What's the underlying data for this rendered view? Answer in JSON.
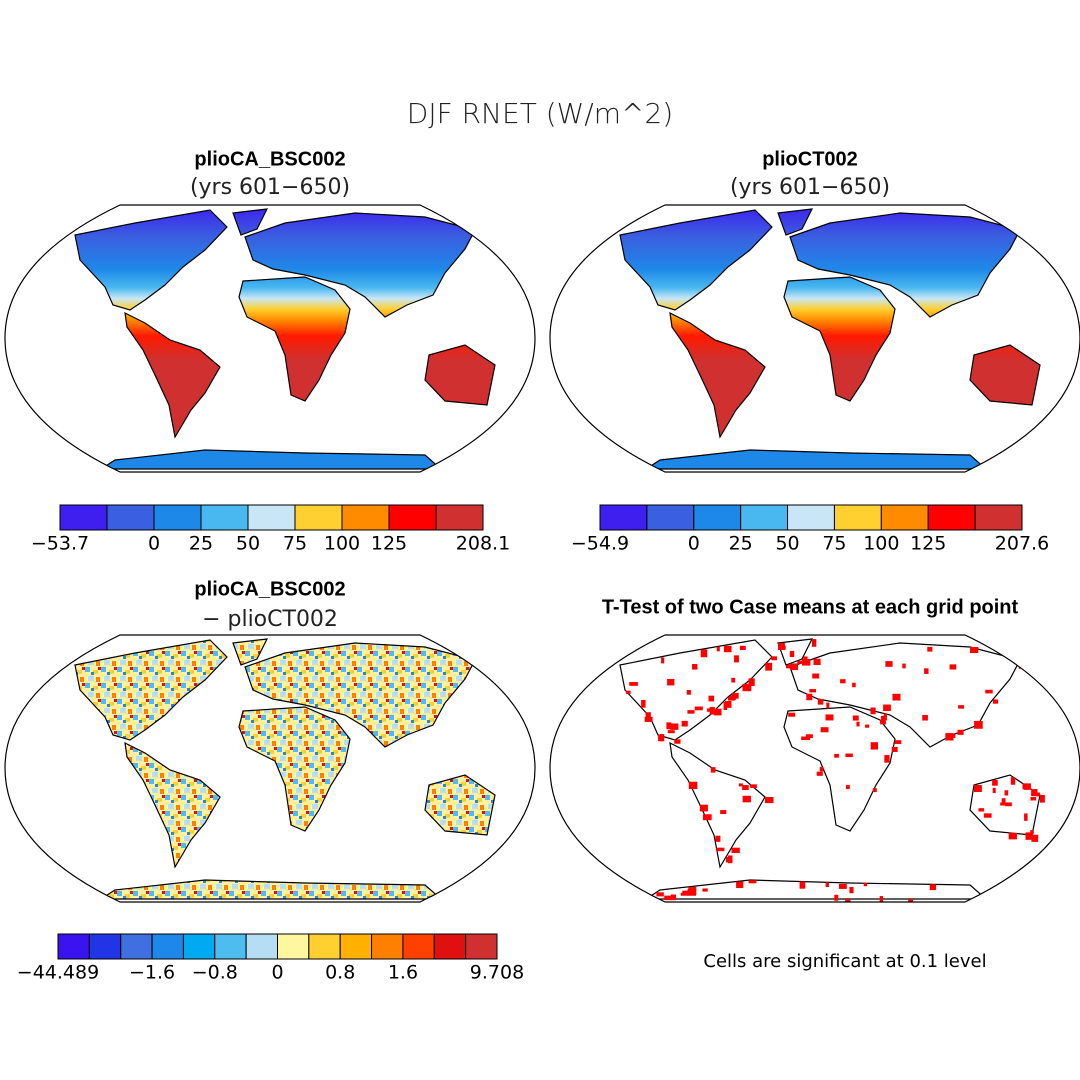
{
  "title": "DJF RNET (W/m^2)",
  "panels": [
    {
      "title": "plioCA_BSC002",
      "subtitle": "(yrs 601−650)",
      "colorbar": {
        "colors": [
          "#3f1ef0",
          "#3a5fe0",
          "#1e88e8",
          "#4ab8f0",
          "#c8e6f5",
          "#ffd030",
          "#ff8c00",
          "#ff0000",
          "#d03030"
        ],
        "labels": [
          "−53.7",
          null,
          "0",
          "25",
          "50",
          "75",
          "100",
          "125",
          null,
          "208.1"
        ]
      }
    },
    {
      "title": "plioCT002",
      "subtitle": "(yrs 601−650)",
      "colorbar": {
        "colors": [
          "#3f1ef0",
          "#3a5fe0",
          "#1e88e8",
          "#4ab8f0",
          "#c8e6f5",
          "#ffd030",
          "#ff8c00",
          "#ff0000",
          "#d03030"
        ],
        "labels": [
          "−54.9",
          null,
          "0",
          "25",
          "50",
          "75",
          "100",
          "125",
          null,
          "207.6"
        ]
      }
    },
    {
      "title": "plioCA_BSC002",
      "subtitle": "− plioCT002",
      "colorbar": {
        "colors": [
          "#3a14f0",
          "#1f35e6",
          "#4070e0",
          "#1e88e8",
          "#00aaf0",
          "#4dbdf0",
          "#b5def5",
          "#fff6a0",
          "#ffd030",
          "#ffb000",
          "#ff8000",
          "#ff4000",
          "#e01010",
          "#d03030"
        ],
        "labels": [
          "−44.489",
          null,
          null,
          "−1.6",
          null,
          "−0.8",
          null,
          "0",
          null,
          "0.8",
          null,
          "1.6",
          null,
          null,
          "9.708"
        ]
      }
    },
    {
      "title": "T-Test of two Case means at each grid point",
      "footnote": "Cells are significant at 0.1 level",
      "significance_color": "#ff0000"
    }
  ]
}
